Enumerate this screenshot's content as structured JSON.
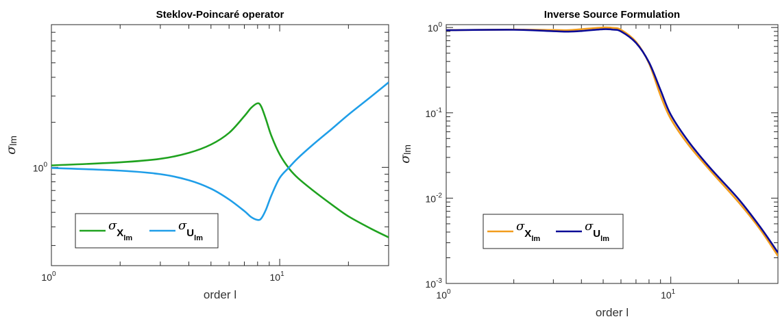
{
  "chart_data": [
    {
      "type": "line",
      "title": "Steklov-Poincaré operator",
      "xlabel": "order l",
      "ylabel": {
        "symbol": "σ",
        "subscript": "lm"
      },
      "xscale": "log",
      "yscale": "log",
      "xlim": [
        1,
        30
      ],
      "ylim": [
        0.22,
        9.0
      ],
      "xticks": [
        {
          "value": 1,
          "base": "10",
          "exp": "0"
        },
        {
          "value": 10,
          "base": "10",
          "exp": "1"
        }
      ],
      "yticks": [
        {
          "value": 1,
          "base": "10",
          "exp": "0"
        }
      ],
      "grid": false,
      "legend_position": "lower-left",
      "series": [
        {
          "name": "σ_X_lm",
          "legend": {
            "symbol": "σ",
            "sub": "X",
            "subsub": "lm"
          },
          "color": "#1fa21f",
          "x": [
            1,
            2,
            3,
            4,
            5,
            6,
            7,
            7.5,
            8,
            8.3,
            8.7,
            9.2,
            10,
            11,
            12,
            14,
            17,
            20,
            25,
            30
          ],
          "y": [
            1.03,
            1.08,
            1.14,
            1.25,
            1.42,
            1.7,
            2.2,
            2.5,
            2.68,
            2.55,
            2.1,
            1.62,
            1.22,
            0.98,
            0.85,
            0.7,
            0.56,
            0.47,
            0.39,
            0.34
          ]
        },
        {
          "name": "σ_U_lm",
          "legend": {
            "symbol": "σ",
            "sub": "U",
            "subsub": "lm"
          },
          "color": "#1f9ee8",
          "x": [
            1,
            2,
            3,
            4,
            5,
            6,
            7,
            7.5,
            8,
            8.3,
            8.7,
            9.2,
            10,
            11,
            12,
            14,
            17,
            20,
            25,
            30
          ],
          "y": [
            0.99,
            0.95,
            0.9,
            0.82,
            0.72,
            0.61,
            0.51,
            0.465,
            0.445,
            0.455,
            0.52,
            0.65,
            0.85,
            1.0,
            1.15,
            1.42,
            1.82,
            2.25,
            2.95,
            3.7
          ]
        }
      ]
    },
    {
      "type": "line",
      "title": "Inverse Source Formulation",
      "xlabel": "order l",
      "ylabel": {
        "symbol": "σ",
        "subscript": "lm"
      },
      "xscale": "log",
      "yscale": "log",
      "xlim": [
        1,
        30
      ],
      "ylim": [
        0.001,
        1.08
      ],
      "xticks": [
        {
          "value": 1,
          "base": "10",
          "exp": "0"
        },
        {
          "value": 10,
          "base": "10",
          "exp": "1"
        }
      ],
      "yticks": [
        {
          "value": 1,
          "base": "10",
          "exp": "0"
        },
        {
          "value": 0.1,
          "base": "10",
          "exp": "-1"
        },
        {
          "value": 0.01,
          "base": "10",
          "exp": "-2"
        },
        {
          "value": 0.001,
          "base": "10",
          "exp": "-3"
        }
      ],
      "grid": false,
      "legend_position": "lower-left",
      "series": [
        {
          "name": "σ_X_lm",
          "legend": {
            "symbol": "σ",
            "sub": "X",
            "subsub": "lm"
          },
          "color": "#f29c1c",
          "x": [
            1,
            2,
            3,
            3.5,
            4,
            5,
            5.5,
            6,
            7,
            8,
            9,
            10,
            12,
            15,
            20,
            25,
            30
          ],
          "y": [
            0.93,
            0.945,
            0.935,
            0.93,
            0.955,
            1.0,
            0.99,
            0.94,
            0.68,
            0.38,
            0.16,
            0.085,
            0.042,
            0.021,
            0.009,
            0.0043,
            0.0021
          ]
        },
        {
          "name": "σ_U_lm",
          "legend": {
            "symbol": "σ",
            "sub": "U",
            "subsub": "lm"
          },
          "color": "#0a0a96",
          "x": [
            1,
            2,
            3,
            3.5,
            4,
            5,
            5.5,
            6,
            7,
            8,
            9,
            10,
            12,
            15,
            20,
            25,
            30
          ],
          "y": [
            0.93,
            0.94,
            0.905,
            0.895,
            0.91,
            0.955,
            0.945,
            0.9,
            0.66,
            0.39,
            0.185,
            0.095,
            0.046,
            0.0225,
            0.0098,
            0.0046,
            0.0023
          ]
        }
      ]
    }
  ]
}
